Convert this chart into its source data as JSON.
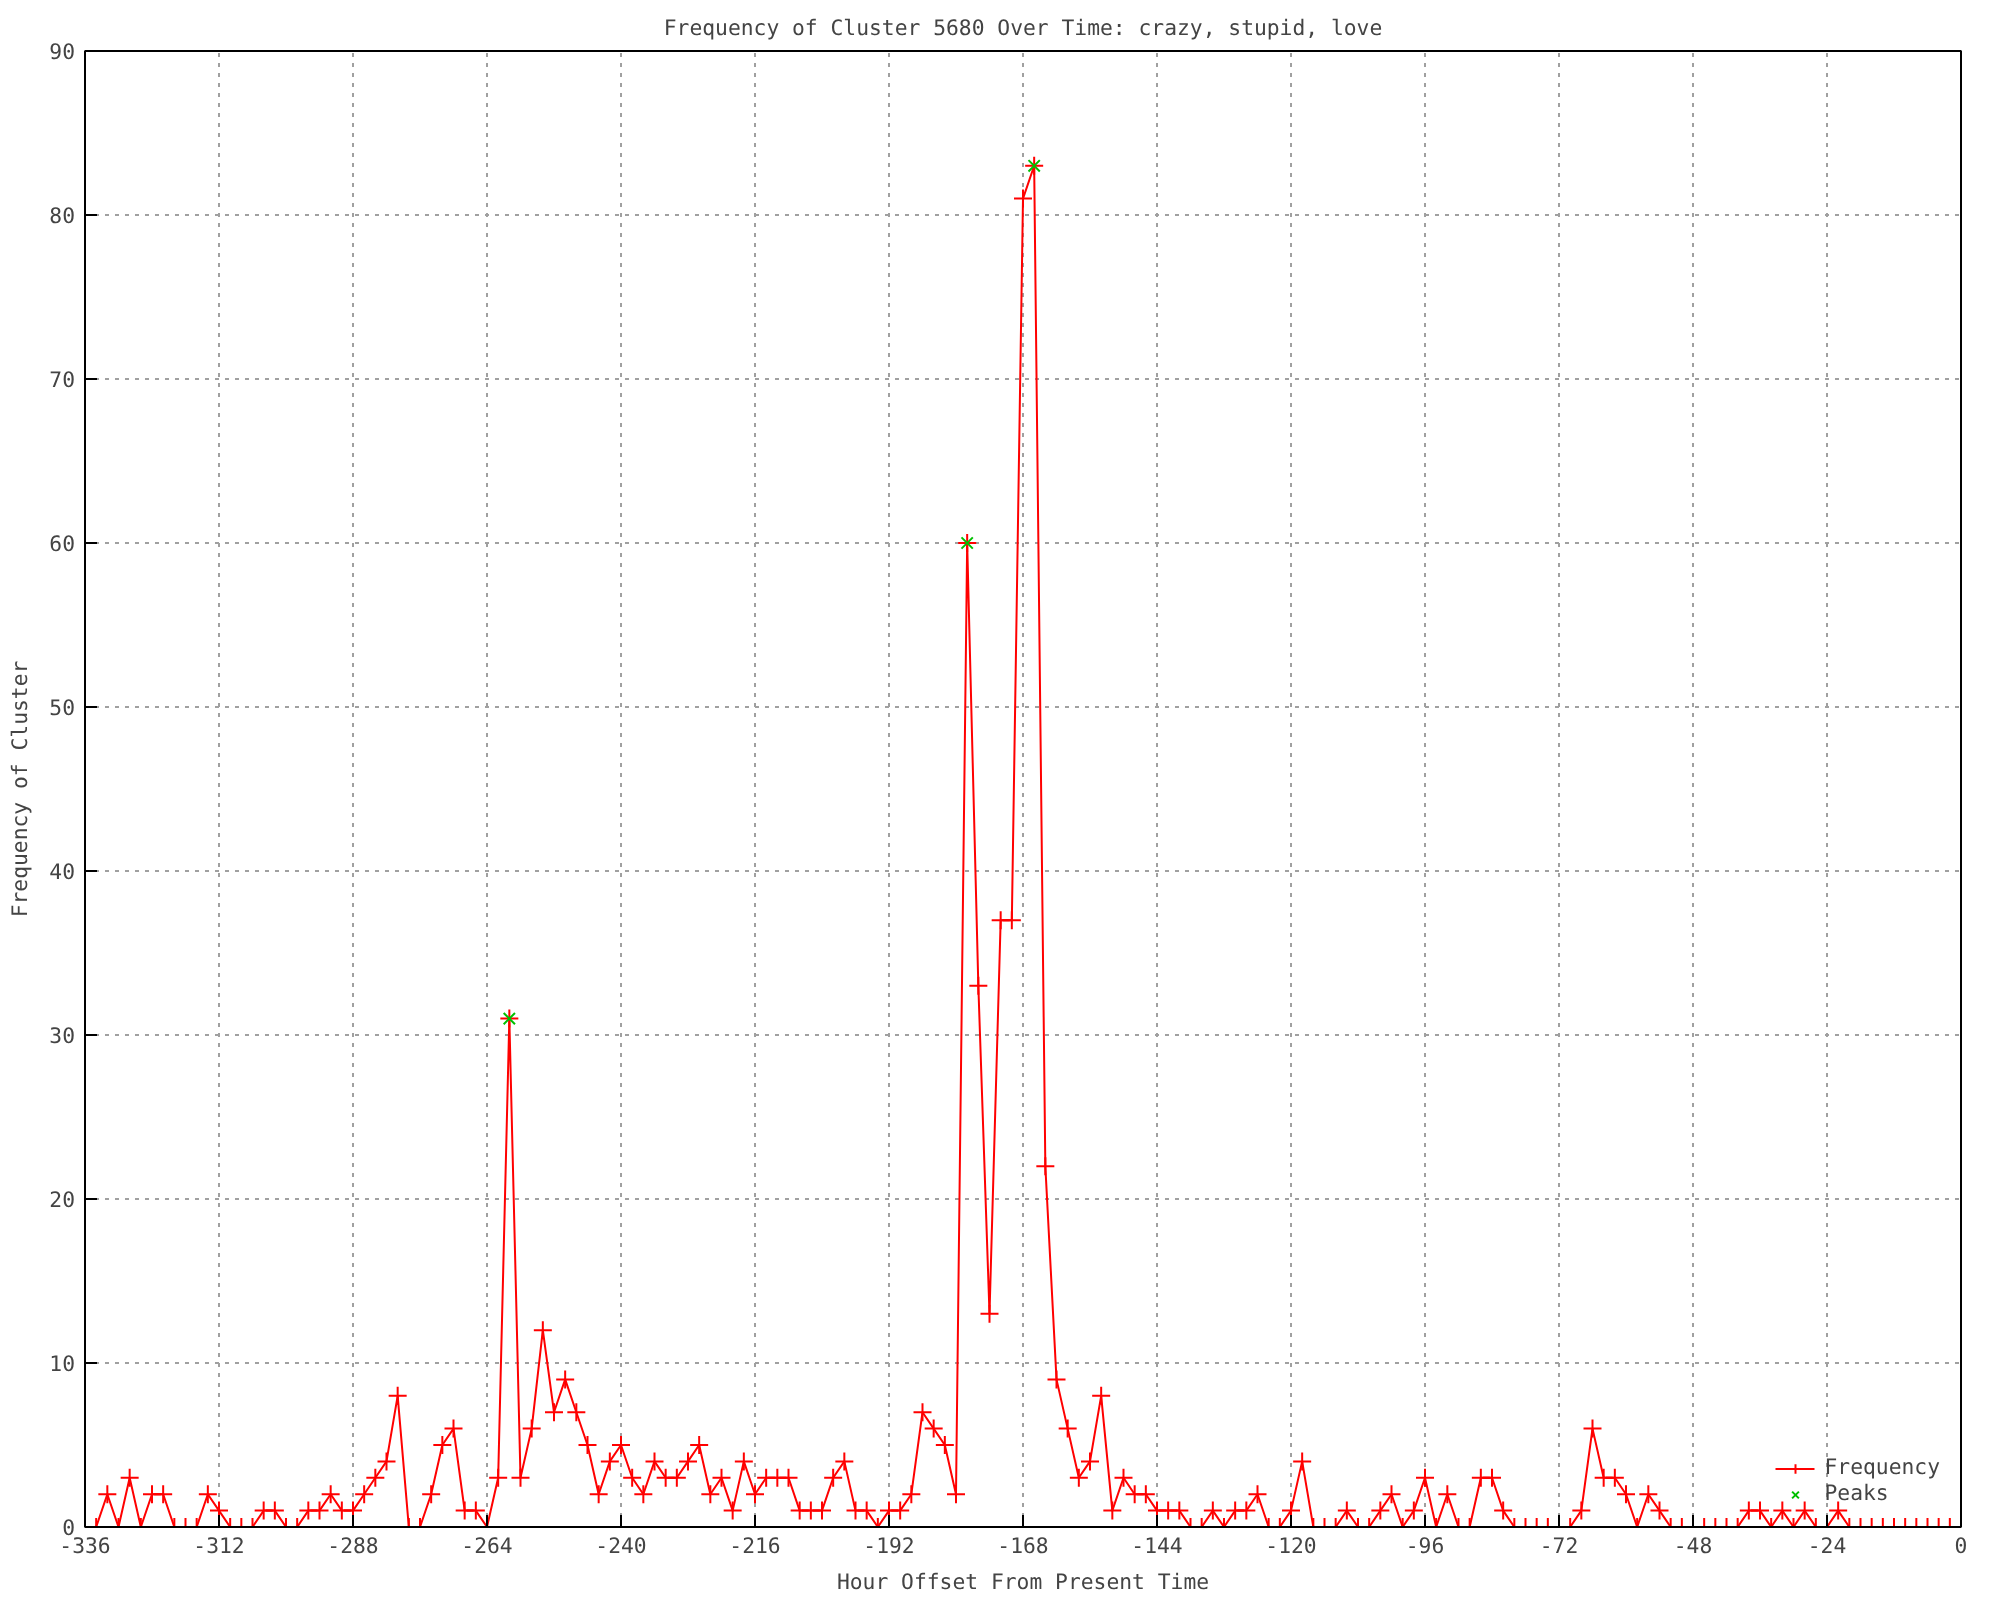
{
  "chart_data": {
    "type": "line",
    "title": "Frequency of Cluster 5680 Over Time: crazy, stupid, love",
    "xlabel": "Hour Offset From Present Time",
    "ylabel": "Frequency of Cluster",
    "xlim": [
      -336,
      0
    ],
    "xticks": [
      -336,
      -312,
      -288,
      -264,
      -240,
      -216,
      -192,
      -168,
      -144,
      -120,
      -96,
      -72,
      -48,
      -24,
      0
    ],
    "ylim": [
      0,
      90
    ],
    "yticks": [
      0,
      10,
      20,
      30,
      40,
      50,
      60,
      70,
      80,
      90
    ],
    "grid": true,
    "legend": "bottom right",
    "line_style": "solid",
    "series": [
      {
        "name": "Frequency",
        "color": "#ff0000",
        "marker": "cross",
        "x": [
          -336,
          -334,
          -332,
          -330,
          -328,
          -326,
          -324,
          -322,
          -320,
          -318,
          -316,
          -314,
          -312,
          -310,
          -308,
          -306,
          -304,
          -302,
          -300,
          -298,
          -296,
          -294,
          -292,
          -290,
          -288,
          -286,
          -284,
          -282,
          -280,
          -278,
          -276,
          -274,
          -272,
          -270,
          -268,
          -266,
          -264,
          -262,
          -260,
          -258,
          -256,
          -254,
          -252,
          -250,
          -248,
          -246,
          -244,
          -242,
          -240,
          -238,
          -236,
          -234,
          -232,
          -230,
          -228,
          -226,
          -224,
          -222,
          -220,
          -218,
          -216,
          -214,
          -212,
          -210,
          -208,
          -206,
          -204,
          -202,
          -200,
          -198,
          -196,
          -194,
          -192,
          -190,
          -188,
          -186,
          -184,
          -182,
          -180,
          -178,
          -176,
          -174,
          -172,
          -170,
          -168,
          -166,
          -164,
          -162,
          -160,
          -158,
          -156,
          -154,
          -152,
          -150,
          -148,
          -146,
          -144,
          -142,
          -140,
          -138,
          -136,
          -134,
          -132,
          -130,
          -128,
          -126,
          -124,
          -122,
          -120,
          -118,
          -116,
          -114,
          -112,
          -110,
          -108,
          -106,
          -104,
          -102,
          -100,
          -98,
          -96,
          -94,
          -92,
          -90,
          -88,
          -86,
          -84,
          -82,
          -80,
          -78,
          -76,
          -74,
          -72,
          -70,
          -68,
          -66,
          -64,
          -62,
          -60,
          -58,
          -56,
          -54,
          -52,
          -50,
          -48,
          -46,
          -44,
          -42,
          -40,
          -38,
          -36,
          -34,
          -32,
          -30,
          -28,
          -26,
          -24,
          -22,
          -20,
          -18,
          -16,
          -14,
          -12,
          -10,
          -8,
          -6,
          -4,
          -2,
          0
        ],
        "values": [
          0,
          0,
          2,
          0,
          3,
          0,
          2,
          2,
          0,
          0,
          0,
          2,
          1,
          0,
          0,
          0,
          1,
          1,
          0,
          0,
          1,
          1,
          2,
          1,
          1,
          2,
          3,
          4,
          8,
          0,
          0,
          2,
          5,
          6,
          1,
          1,
          0,
          3,
          31,
          3,
          6,
          12,
          7,
          9,
          7,
          5,
          2,
          4,
          5,
          3,
          2,
          4,
          3,
          3,
          4,
          5,
          2,
          3,
          1,
          4,
          2,
          3,
          3,
          3,
          1,
          1,
          1,
          3,
          4,
          1,
          1,
          0,
          1,
          1,
          2,
          7,
          6,
          5,
          2,
          60,
          33,
          13,
          37,
          37,
          81,
          83,
          22,
          9,
          6,
          3,
          4,
          8,
          1,
          3,
          2,
          2,
          1,
          1,
          1,
          0,
          0,
          1,
          0,
          1,
          1,
          2,
          0,
          0,
          1,
          4,
          0,
          0,
          0,
          1,
          0,
          0,
          1,
          2,
          0,
          1,
          3,
          0,
          2,
          0,
          0,
          3,
          3,
          1,
          0,
          0,
          0,
          0,
          0,
          0,
          1,
          6,
          3,
          3,
          2,
          0,
          2,
          1,
          0,
          0,
          0,
          0,
          0,
          0,
          0,
          1,
          1,
          0,
          1,
          0,
          1,
          0,
          0,
          1,
          0,
          0,
          0,
          0,
          0,
          0,
          0,
          0,
          0,
          0,
          0
        ]
      },
      {
        "name": "Peaks",
        "type": "scatter",
        "color": "#00c000",
        "marker": "cross",
        "x": [
          -260,
          -178,
          -166
        ],
        "values": [
          31,
          60,
          83
        ]
      }
    ]
  }
}
